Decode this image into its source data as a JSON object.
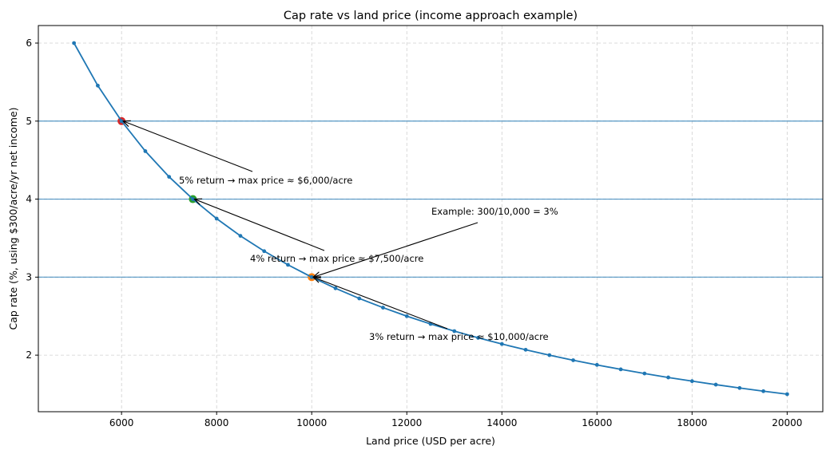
{
  "chart_data": {
    "type": "line",
    "title": "Cap rate vs land price (income approach example)",
    "xlabel": "Land price (USD per acre)",
    "ylabel": "Cap rate (%, using $300/acre/yr net income)",
    "xlim": [
      4250,
      20750
    ],
    "ylim": [
      1.275,
      6.225
    ],
    "xticks": [
      6000,
      8000,
      10000,
      12000,
      14000,
      16000,
      18000,
      20000
    ],
    "yticks": [
      2,
      3,
      4,
      5,
      6
    ],
    "grid": true,
    "x": [
      5000,
      5500,
      6000,
      6500,
      7000,
      7500,
      8000,
      8500,
      9000,
      9500,
      10000,
      10500,
      11000,
      11500,
      12000,
      12500,
      13000,
      13500,
      14000,
      14500,
      15000,
      15500,
      16000,
      16500,
      17000,
      17500,
      18000,
      18500,
      19000,
      19500,
      20000
    ],
    "y": [
      6.0,
      5.455,
      5.0,
      4.615,
      4.286,
      4.0,
      3.75,
      3.529,
      3.333,
      3.158,
      3.0,
      2.857,
      2.727,
      2.609,
      2.5,
      2.4,
      2.308,
      2.222,
      2.143,
      2.069,
      2.0,
      1.935,
      1.875,
      1.818,
      1.765,
      1.714,
      1.667,
      1.622,
      1.579,
      1.538,
      1.5
    ],
    "line_color": "#1f77b4",
    "hlines": [
      5,
      4,
      3
    ],
    "highlight_points": [
      {
        "x": 6000,
        "y": 5,
        "color": "#d62728"
      },
      {
        "x": 7500,
        "y": 4,
        "color": "#2ca02c"
      },
      {
        "x": 10000,
        "y": 3,
        "color": "#ff7f0e"
      }
    ],
    "annotations": [
      {
        "text": "5% return → max price ≈ $6,000/acre",
        "x": 6000,
        "y": 5
      },
      {
        "text": "4% return → max price ≈ $7,500/acre",
        "x": 7500,
        "y": 4
      },
      {
        "text": "3% return → max price ≈ $10,000/acre",
        "x": 10000,
        "y": 3
      },
      {
        "text": "Example: 300/10,000 = 3%",
        "x": 10000,
        "y": 3
      }
    ]
  }
}
